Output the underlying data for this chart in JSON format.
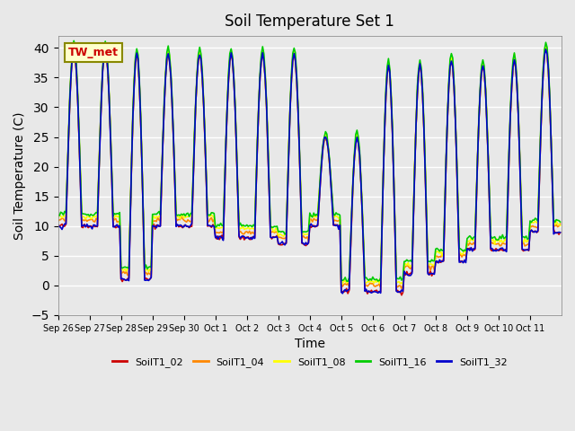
{
  "title": "Soil Temperature Set 1",
  "xlabel": "Time",
  "ylabel": "Soil Temperature (C)",
  "ylim": [
    -5,
    42
  ],
  "yticks": [
    -5,
    0,
    5,
    10,
    15,
    20,
    25,
    30,
    35,
    40
  ],
  "annotation_text": "TW_met",
  "series_colors": {
    "SoilT1_02": "#cc0000",
    "SoilT1_04": "#ff8800",
    "SoilT1_08": "#ffff00",
    "SoilT1_16": "#00cc00",
    "SoilT1_32": "#0000cc"
  },
  "series_names": [
    "SoilT1_02",
    "SoilT1_04",
    "SoilT1_08",
    "SoilT1_16",
    "SoilT1_32"
  ],
  "xtick_labels": [
    "Sep 26",
    "Sep 27",
    "Sep 28",
    "Sep 29",
    "Sep 30",
    "Oct 1",
    "Oct 2",
    "Oct 3",
    "Oct 4",
    "Oct 5",
    "Oct 6",
    "Oct 7",
    "Oct 8",
    "Oct 9",
    "Oct 10",
    "Oct 11"
  ],
  "n_days": 16,
  "linewidth": 1.2,
  "day_mins": [
    10,
    10,
    1,
    10,
    10,
    8,
    8,
    7,
    10,
    -1,
    -1,
    2,
    4,
    6,
    6,
    9
  ],
  "day_maxs": [
    40,
    40,
    39,
    39,
    39,
    39,
    39,
    39,
    25,
    25,
    37,
    37,
    38,
    37,
    38,
    40
  ],
  "sensor_offsets_min": {
    "SoilT1_02": 0,
    "SoilT1_04": 1,
    "SoilT1_08": 1.5,
    "SoilT1_16": 2,
    "SoilT1_32": 0
  },
  "sensor_offsets_max": {
    "SoilT1_02": 0,
    "SoilT1_04": 0,
    "SoilT1_08": 0.5,
    "SoilT1_16": 1,
    "SoilT1_32": 0
  }
}
